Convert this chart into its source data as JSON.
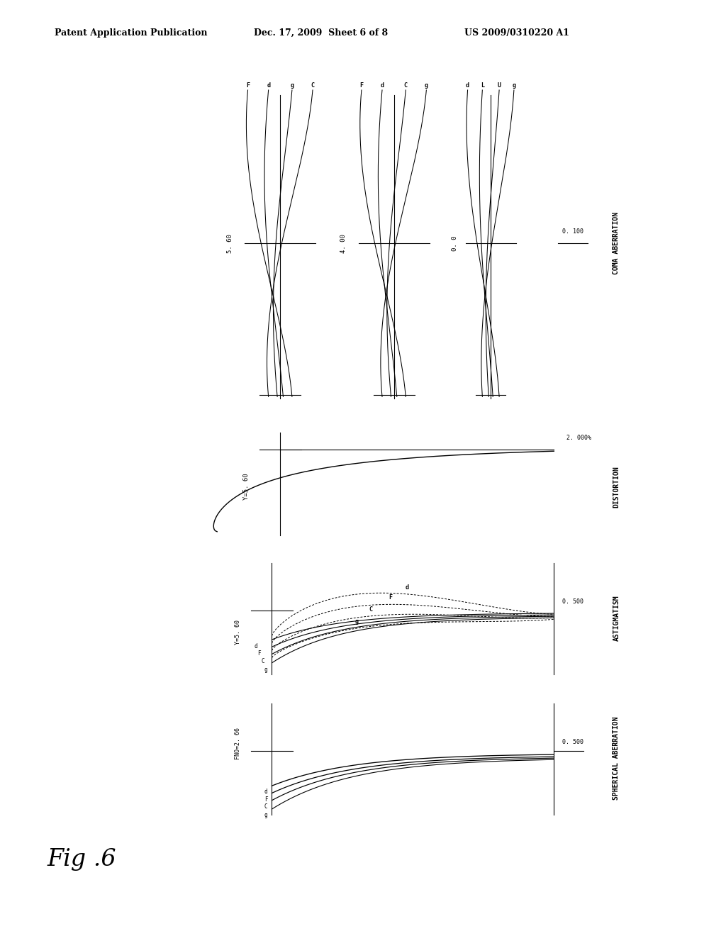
{
  "title_left": "Patent Application Publication",
  "title_mid": "Dec. 17, 2009  Sheet 6 of 8",
  "title_right": "US 2009/0310220 A1",
  "fig_label": "Fig .6",
  "bg": "#ffffff",
  "fg": "#000000",
  "coma_fields": [
    "5. 60",
    "4. 00",
    "0. 0"
  ],
  "coma_wl_1": [
    "F",
    "d",
    "g",
    "C"
  ],
  "coma_wl_2": [
    "F",
    "d",
    "C",
    "g"
  ],
  "coma_wl_3": [
    "d",
    "L",
    "U",
    "g"
  ],
  "coma_scale": "0. 100",
  "dist_field": "Y=5. 60",
  "dist_scale": "2. 000%",
  "astig_field": "Y=5. 60",
  "astig_scale": "0. 500",
  "astig_solid_labels": [
    "g",
    "C",
    "F",
    "d"
  ],
  "astig_dash_labels": [
    "g",
    "C",
    "F",
    "d"
  ],
  "sph_field": "FNO=2. 66",
  "sph_scale": "0. 500",
  "sph_labels": [
    "g",
    "C",
    "F",
    "d"
  ]
}
